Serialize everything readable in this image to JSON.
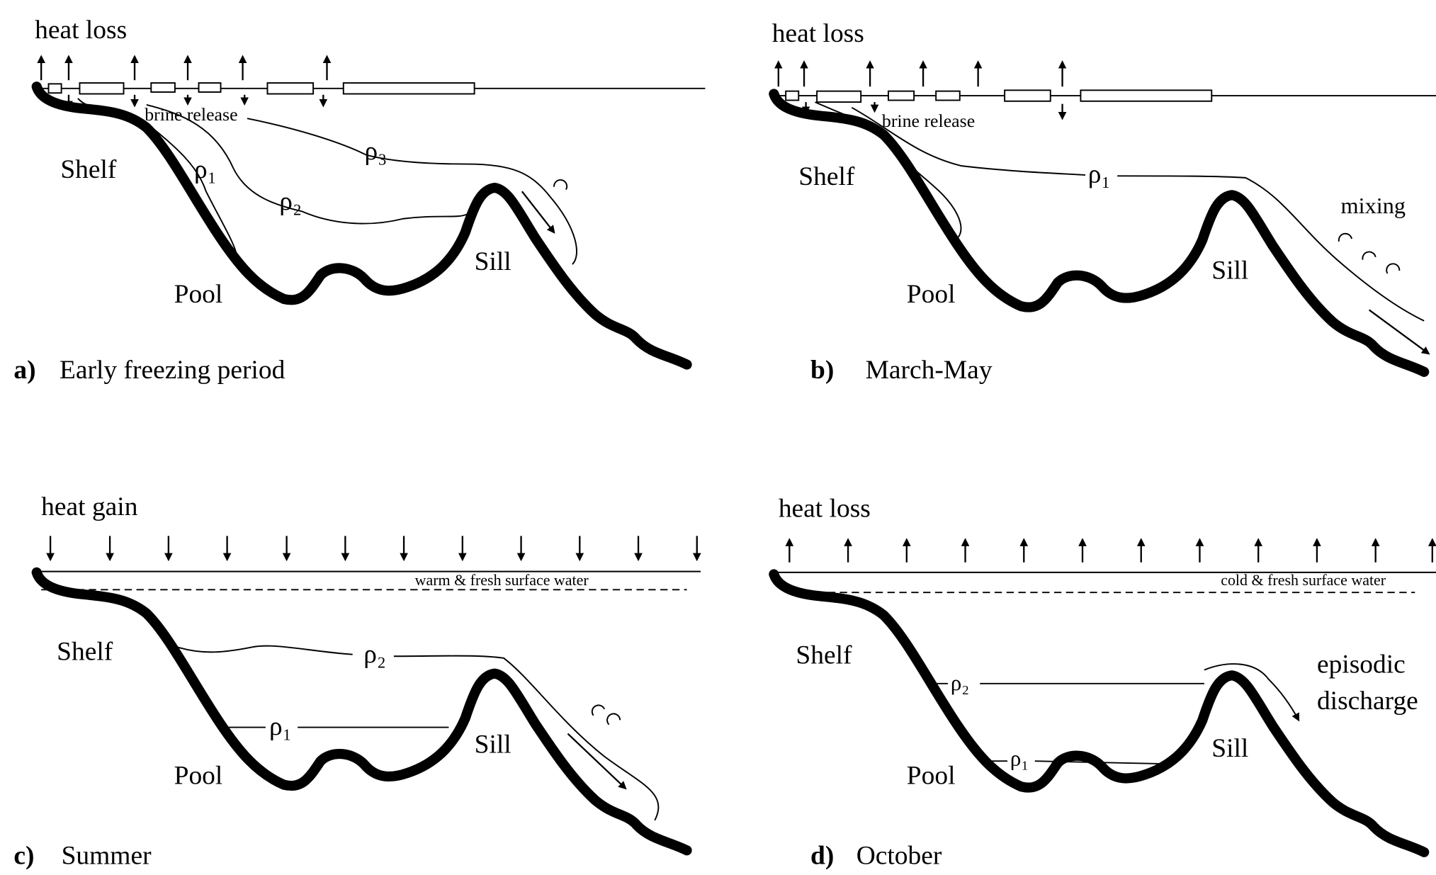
{
  "panels": [
    {
      "letter": "a)",
      "caption": "Early freezing period",
      "flux": "heat loss",
      "notes": [
        "brine release"
      ],
      "labels": {
        "shelf": "Shelf",
        "pool": "Pool",
        "sill": "Sill"
      },
      "densities": [
        "ρ₁",
        "ρ₂",
        "ρ₃"
      ]
    },
    {
      "letter": "b)",
      "caption": "March-May",
      "flux": "heat loss",
      "notes": [
        "brine release",
        "mixing"
      ],
      "labels": {
        "shelf": "Shelf",
        "pool": "Pool",
        "sill": "Sill"
      },
      "densities": [
        "ρ₁"
      ]
    },
    {
      "letter": "c)",
      "caption": "Summer",
      "flux": "heat gain",
      "notes": [
        "warm & fresh surface water"
      ],
      "labels": {
        "shelf": "Shelf",
        "pool": "Pool",
        "sill": "Sill"
      },
      "densities": [
        "ρ₁",
        "ρ₂"
      ]
    },
    {
      "letter": "d)",
      "caption": "October",
      "flux": "heat loss",
      "notes": [
        "cold & fresh surface water"
      ],
      "discharge": [
        "episodic",
        "discharge"
      ],
      "labels": {
        "shelf": "Shelf",
        "pool": "Pool",
        "sill": "Sill"
      },
      "densities": [
        "ρ₁",
        "ρ₂"
      ]
    }
  ]
}
